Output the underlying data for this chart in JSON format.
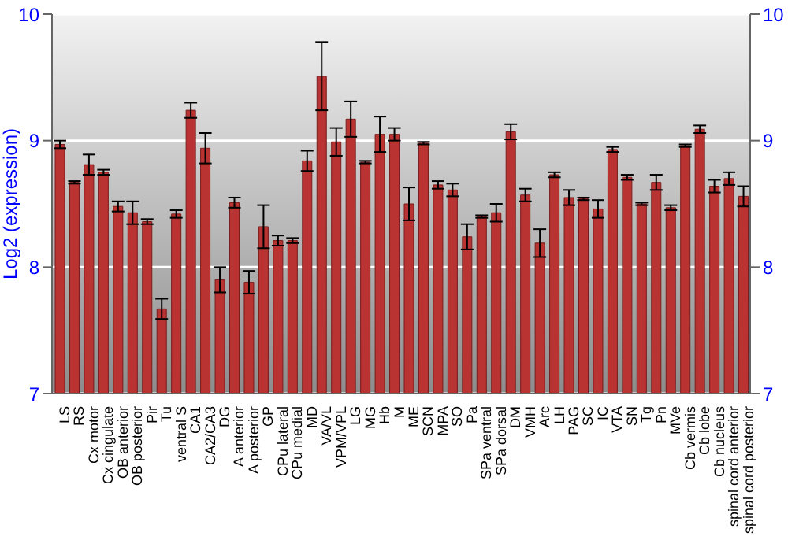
{
  "chart_data": {
    "type": "bar",
    "ylabel": "Log2 (expression)",
    "categories": [
      "LS",
      "RS",
      "Cx motor",
      "Cx cingulate",
      "OB anterior",
      "OB posterior",
      "Pir",
      "Tu",
      "ventral S",
      "CA1",
      "CA2/CA3",
      "DG",
      "A anterior",
      "A posterior",
      "GP",
      "CPu lateral",
      "CPu medial",
      "MD",
      "VA/VL",
      "VPM/VPL",
      "LG",
      "MG",
      "Hb",
      "M",
      "ME",
      "SCN",
      "MPA",
      "SO",
      "Pa",
      "SPa ventral",
      "SPa dorsal",
      "DM",
      "VMH",
      "Arc",
      "LH",
      "PAG",
      "SC",
      "IC",
      "VTA",
      "SN",
      "Tg",
      "Pn",
      "MVe",
      "Cb vermis",
      "Cb lobe",
      "Cb nucleus",
      "spinal cord anterior",
      "spinal cord posterior"
    ],
    "values": [
      8.97,
      8.67,
      8.81,
      8.75,
      8.48,
      8.43,
      8.36,
      7.67,
      8.42,
      9.24,
      8.94,
      7.9,
      8.51,
      7.88,
      8.32,
      8.21,
      8.21,
      8.84,
      9.51,
      8.99,
      9.17,
      8.83,
      9.05,
      9.05,
      8.5,
      8.98,
      8.65,
      8.61,
      8.24,
      8.4,
      8.43,
      9.07,
      8.57,
      8.19,
      8.73,
      8.55,
      8.54,
      8.46,
      8.93,
      8.71,
      8.5,
      8.67,
      8.47,
      8.96,
      9.09,
      8.64,
      8.7,
      8.56
    ],
    "errors": [
      0.03,
      0.01,
      0.08,
      0.02,
      0.04,
      0.09,
      0.02,
      0.08,
      0.03,
      0.06,
      0.12,
      0.1,
      0.04,
      0.09,
      0.17,
      0.04,
      0.02,
      0.08,
      0.27,
      0.11,
      0.14,
      0.01,
      0.14,
      0.05,
      0.13,
      0.01,
      0.03,
      0.05,
      0.1,
      0.01,
      0.07,
      0.06,
      0.05,
      0.11,
      0.02,
      0.06,
      0.01,
      0.07,
      0.02,
      0.02,
      0.01,
      0.06,
      0.02,
      0.01,
      0.03,
      0.05,
      0.05,
      0.08
    ],
    "color": "#b83331",
    "ylim": [
      7,
      10
    ],
    "yticks": [
      7,
      8,
      9,
      10
    ],
    "y2lim": [
      7,
      10
    ],
    "y2ticks": [
      7,
      8,
      9,
      10
    ],
    "grid": "y"
  }
}
